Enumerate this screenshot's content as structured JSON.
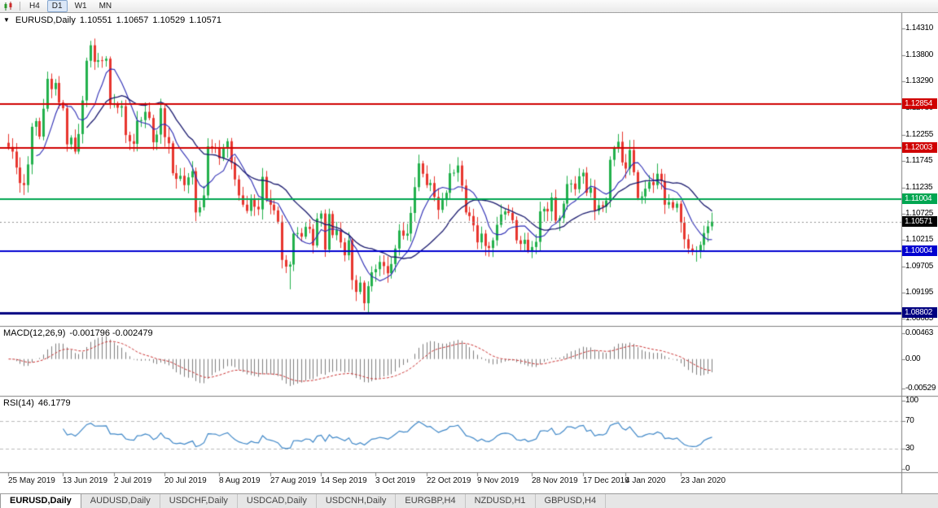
{
  "toolbar": {
    "timeframes": [
      {
        "label": "H4",
        "active": false
      },
      {
        "label": "D1",
        "active": true
      },
      {
        "label": "W1",
        "active": false
      },
      {
        "label": "MN",
        "active": false
      }
    ]
  },
  "chart": {
    "symbol_period": "EURUSD,Daily",
    "open": "1.10551",
    "high": "1.10657",
    "low": "1.10529",
    "close": "1.10571"
  },
  "chart_data": {
    "type": "candlestick",
    "symbol": "EURUSD",
    "period": "Daily",
    "ylim": [
      1.0855,
      1.146
    ],
    "first_open": 1.121,
    "closes": [
      1.1202,
      1.1193,
      1.1162,
      1.1132,
      1.1128,
      1.1168,
      1.1241,
      1.1252,
      1.1222,
      1.1276,
      1.1334,
      1.1314,
      1.1326,
      1.1288,
      1.1277,
      1.1207,
      1.122,
      1.1193,
      1.1227,
      1.1292,
      1.1369,
      1.1399,
      1.1367,
      1.137,
      1.1369,
      1.1373,
      1.1285,
      1.1285,
      1.1278,
      1.1281,
      1.1225,
      1.1213,
      1.1208,
      1.1253,
      1.1254,
      1.127,
      1.1258,
      1.1211,
      1.1226,
      1.1277,
      1.1221,
      1.1209,
      1.1151,
      1.114,
      1.1146,
      1.1128,
      1.1143,
      1.1155,
      1.1075,
      1.1085,
      1.1108,
      1.1203,
      1.12,
      1.1199,
      1.118,
      1.1199,
      1.1213,
      1.1171,
      1.1139,
      1.1108,
      1.109,
      1.1078,
      1.11,
      1.1086,
      1.1081,
      1.1144,
      1.1102,
      1.109,
      1.1079,
      1.1057,
      1.0983,
      1.097,
      1.0974,
      1.1034,
      1.1035,
      1.1028,
      1.1047,
      1.1043,
      1.1011,
      1.1063,
      1.1073,
      1.1003,
      1.1072,
      1.1031,
      1.1041,
      1.1017,
      1.0992,
      1.1021,
      1.0944,
      1.0921,
      1.0939,
      1.0899,
      1.0932,
      1.0959,
      1.0965,
      1.0979,
      1.0971,
      1.0957,
      1.0975,
      1.1005,
      1.104,
      1.103,
      1.1034,
      1.1074,
      1.1124,
      1.117,
      1.115,
      1.1128,
      1.1132,
      1.1105,
      1.108,
      1.1099,
      1.1113,
      1.1151,
      1.1152,
      1.1166,
      1.1127,
      1.1075,
      1.1068,
      1.105,
      1.1017,
      1.1034,
      1.101,
      1.1006,
      1.1021,
      1.1051,
      1.1071,
      1.1077,
      1.1074,
      1.106,
      1.1021,
      1.1014,
      1.1022,
      1.1001,
      1.1008,
      1.1018,
      1.1077,
      1.1082,
      1.1077,
      1.1104,
      1.1059,
      1.1064,
      1.1092,
      1.113,
      1.1131,
      1.112,
      1.1145,
      1.1152,
      1.1113,
      1.1123,
      1.1078,
      1.1089,
      1.1086,
      1.1098,
      1.1177,
      1.1199,
      1.1212,
      1.1172,
      1.116,
      1.1196,
      1.1153,
      1.1103,
      1.1106,
      1.1121,
      1.1134,
      1.1128,
      1.115,
      1.1136,
      1.109,
      1.1095,
      1.1084,
      1.1092,
      1.1055,
      1.1023,
      1.1005,
      1.0999,
      1.1,
      1.1012,
      1.1035,
      1.1048,
      1.10571
    ],
    "wick_overrides": {
      "10": {
        "h": 1.1348
      },
      "22": {
        "h": 1.1412
      },
      "72": {
        "l": 1.0926
      },
      "91": {
        "l": 1.0885
      },
      "92": {
        "l": 1.0879
      },
      "175": {
        "l": 1.0992
      }
    },
    "x_ticks": [
      {
        "i": 0,
        "label": "25 May 2019"
      },
      {
        "i": 14,
        "label": "13 Jun 2019"
      },
      {
        "i": 27,
        "label": "2 Jul 2019"
      },
      {
        "i": 40,
        "label": "20 Jul 2019"
      },
      {
        "i": 54,
        "label": "8 Aug 2019"
      },
      {
        "i": 67,
        "label": "27 Aug 2019"
      },
      {
        "i": 80,
        "label": "14 Sep 2019"
      },
      {
        "i": 94,
        "label": "3 Oct 2019"
      },
      {
        "i": 107,
        "label": "22 Oct 2019"
      },
      {
        "i": 120,
        "label": "9 Nov 2019"
      },
      {
        "i": 134,
        "label": "28 Nov 2019"
      },
      {
        "i": 147,
        "label": "17 Dec 2019"
      },
      {
        "i": 158,
        "label": "4 Jan 2020"
      },
      {
        "i": 172,
        "label": "23 Jan 2020"
      }
    ],
    "price_ticks": [
      "1.14310",
      "1.13800",
      "1.13290",
      "1.12780",
      "1.12255",
      "1.11745",
      "1.11235",
      "1.10725",
      "1.10215",
      "1.09705",
      "1.09195",
      "1.08685"
    ],
    "levels": [
      {
        "value": 1.12854,
        "label": "1.12854",
        "color": "#D00000",
        "lw": 2
      },
      {
        "value": 1.12003,
        "label": "1.12003",
        "color": "#D00000",
        "lw": 2
      },
      {
        "value": 1.11004,
        "label": "1.11004",
        "color": "#00A651",
        "lw": 2
      },
      {
        "value": 1.10004,
        "label": "1.10004",
        "color": "#0000D0",
        "lw": 2
      },
      {
        "value": 1.08802,
        "label": "1.08802",
        "color": "#000080",
        "lw": 3
      }
    ],
    "current_price": {
      "value": 1.10571,
      "label": "1.10571",
      "color": "#000000"
    },
    "indicators": {
      "macd": {
        "label": "MACD(12,26,9)",
        "values": "-0.001796 -0.002479",
        "fast": 12,
        "slow": 26,
        "signal": 9,
        "axis": [
          "0.00463",
          "0.00",
          "-0.00529"
        ],
        "range": [
          -0.0061,
          0.0053
        ]
      },
      "rsi": {
        "label": "RSI(14)",
        "value": "46.1779",
        "period": 14,
        "axis": [
          "100",
          "70",
          "30",
          "0"
        ],
        "levels": [
          70,
          30
        ]
      }
    },
    "colors": {
      "up": "#22B14C",
      "down": "#E8352E",
      "ma_fast": "#2B2BB4",
      "ma_slow": "#1A1A6E",
      "macd_bar": "#7E7E7E",
      "macd_signal": "#CC3333",
      "rsi_line": "#3E87C8",
      "current_line": "#909090"
    }
  },
  "tabs": {
    "items": [
      {
        "label": "EURUSD,Daily",
        "active": true
      },
      {
        "label": "AUDUSD,Daily",
        "active": false
      },
      {
        "label": "USDCHF,Daily",
        "active": false
      },
      {
        "label": "USDCAD,Daily",
        "active": false
      },
      {
        "label": "USDCNH,Daily",
        "active": false
      },
      {
        "label": "EURGBP,H4",
        "active": false
      },
      {
        "label": "NZDUSD,H1",
        "active": false
      },
      {
        "label": "GBPUSD,H4",
        "active": false
      }
    ]
  }
}
